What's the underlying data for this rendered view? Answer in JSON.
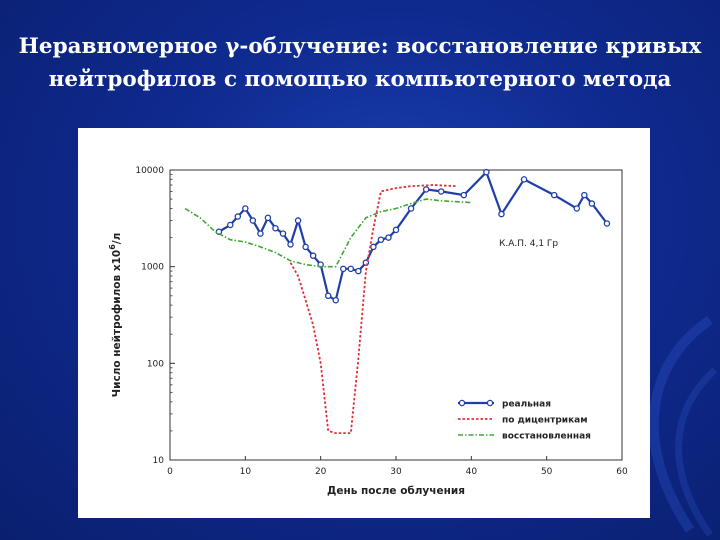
{
  "slide": {
    "title_line1": "Неравномерное γ-облучение: восстановление кривых",
    "title_line2": "нейтрофилов с помощью компьютерного метода"
  },
  "chart_data": {
    "type": "line",
    "title": "",
    "xlabel": "День после облучения",
    "ylabel_text": "Число нейтрофилов x10",
    "ylabel_exp": "6",
    "ylabel_unit": "/л",
    "annotation": "К.А.П. 4,1 Гр",
    "xlim": [
      0,
      60
    ],
    "ylim": [
      10,
      10000
    ],
    "y_scale": "log",
    "x_ticks": [
      0,
      10,
      20,
      30,
      40,
      50,
      60
    ],
    "x_tick_labels": [
      "0",
      "10",
      "20",
      "30",
      "40",
      "50",
      "60"
    ],
    "y_ticks": [
      10,
      100,
      1000,
      10000
    ],
    "y_tick_labels": [
      "10",
      "100",
      "1000",
      "10000"
    ],
    "grid": false,
    "legend_position": "bottom-right",
    "series": [
      {
        "name": "реальная",
        "color": "#1f3fa8",
        "style": "solid-markers",
        "x": [
          6.5,
          8,
          9,
          10,
          11,
          12,
          13,
          14,
          15,
          16,
          17,
          18,
          19,
          20,
          21,
          22,
          23,
          24,
          25,
          26,
          27,
          28,
          29,
          30,
          32,
          34,
          36,
          39,
          42,
          44,
          47,
          51,
          54,
          55,
          56,
          58
        ],
        "y": [
          2300,
          2700,
          3300,
          4000,
          3000,
          2200,
          3200,
          2500,
          2200,
          1700,
          3000,
          1600,
          1300,
          1050,
          500,
          450,
          950,
          950,
          900,
          1100,
          1600,
          1900,
          2000,
          2400,
          4000,
          6300,
          6000,
          5500,
          9500,
          3500,
          8000,
          5500,
          4000,
          5500,
          4500,
          2800
        ]
      },
      {
        "name": "по дицентрикам",
        "color": "#e0303a",
        "style": "dotted",
        "x": [
          16,
          17,
          18,
          19,
          20,
          21,
          22,
          23,
          24,
          25,
          26,
          27,
          28,
          30,
          32,
          35,
          38
        ],
        "y": [
          1100,
          800,
          450,
          250,
          100,
          20,
          19,
          19,
          19,
          110,
          900,
          2500,
          6000,
          6500,
          6800,
          7000,
          6800
        ]
      },
      {
        "name": "восстановленная",
        "color": "#3da832",
        "style": "dash-dot",
        "x": [
          2,
          4,
          6,
          8,
          10,
          12,
          14,
          16,
          18,
          20,
          22,
          24,
          26,
          28,
          30,
          32,
          34,
          36,
          38,
          40
        ],
        "y": [
          4000,
          3200,
          2300,
          1900,
          1800,
          1600,
          1400,
          1150,
          1050,
          1000,
          1000,
          2000,
          3200,
          3700,
          4000,
          4500,
          5000,
          4800,
          4700,
          4600
        ]
      }
    ]
  }
}
